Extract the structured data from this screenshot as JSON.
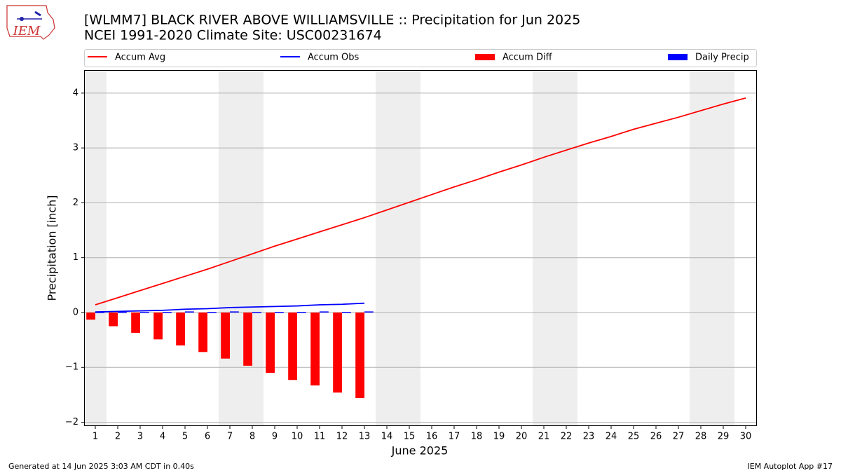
{
  "chart_data": {
    "type": "combo",
    "logo": "IEM",
    "title": "[WLMM7] BLACK RIVER ABOVE WILLIAMSVILLE :: Precipitation for Jun 2025",
    "subtitle": "NCEI 1991-2020 Climate Site: USC00231674",
    "xlabel": "June 2025",
    "ylabel": "Precipitation [inch]",
    "footer_left": "Generated at 14 Jun 2025 3:03 AM CDT in 0.40s",
    "footer_right": "IEM Autoplot App #17",
    "categories": [
      "1",
      "2",
      "3",
      "4",
      "5",
      "6",
      "7",
      "8",
      "9",
      "10",
      "11",
      "12",
      "13",
      "14",
      "15",
      "16",
      "17",
      "18",
      "19",
      "20",
      "21",
      "22",
      "23",
      "24",
      "25",
      "26",
      "27",
      "28",
      "29",
      "30"
    ],
    "shaded_days": [
      1,
      7,
      8,
      14,
      15,
      21,
      22,
      28,
      29
    ],
    "xlim": [
      0.5,
      30.5
    ],
    "ylim": [
      -2.07,
      4.42
    ],
    "yticks": [
      {
        "value": -2,
        "label": "−2"
      },
      {
        "value": -1,
        "label": "−1"
      },
      0,
      1,
      2,
      3,
      4
    ],
    "grid": true,
    "series": [
      {
        "name": "Accum Avg",
        "type": "line",
        "color": "#ff0000",
        "values": [
          0.14,
          0.27,
          0.4,
          0.53,
          0.66,
          0.79,
          0.93,
          1.07,
          1.21,
          1.34,
          1.47,
          1.6,
          1.73,
          1.87,
          2.01,
          2.15,
          2.29,
          2.42,
          2.56,
          2.69,
          2.83,
          2.96,
          3.09,
          3.21,
          3.34,
          3.45,
          3.56,
          3.68,
          3.8,
          3.91
        ]
      },
      {
        "name": "Accum Obs",
        "type": "line",
        "color": "#0000ff",
        "values": [
          0.01,
          0.02,
          0.03,
          0.04,
          0.06,
          0.07,
          0.09,
          0.1,
          0.11,
          0.12,
          0.14,
          0.15,
          0.17,
          null,
          null,
          null,
          null,
          null,
          null,
          null,
          null,
          null,
          null,
          null,
          null,
          null,
          null,
          null,
          null,
          null
        ]
      },
      {
        "name": "Accum Diff",
        "type": "bar",
        "color": "#ff0000",
        "values": [
          -0.13,
          -0.25,
          -0.37,
          -0.49,
          -0.6,
          -0.72,
          -0.84,
          -0.97,
          -1.1,
          -1.23,
          -1.33,
          -1.46,
          -1.56,
          null,
          null,
          null,
          null,
          null,
          null,
          null,
          null,
          null,
          null,
          null,
          null,
          null,
          null,
          null,
          null,
          null
        ]
      },
      {
        "name": "Daily Precip",
        "type": "bar",
        "color": "#0000ff",
        "values": [
          0.01,
          0.01,
          0.01,
          0.01,
          0.02,
          0.01,
          0.02,
          0.01,
          0.01,
          0.01,
          0.02,
          0.01,
          0.02,
          null,
          null,
          null,
          null,
          null,
          null,
          null,
          null,
          null,
          null,
          null,
          null,
          null,
          null,
          null,
          null,
          null
        ]
      }
    ]
  }
}
